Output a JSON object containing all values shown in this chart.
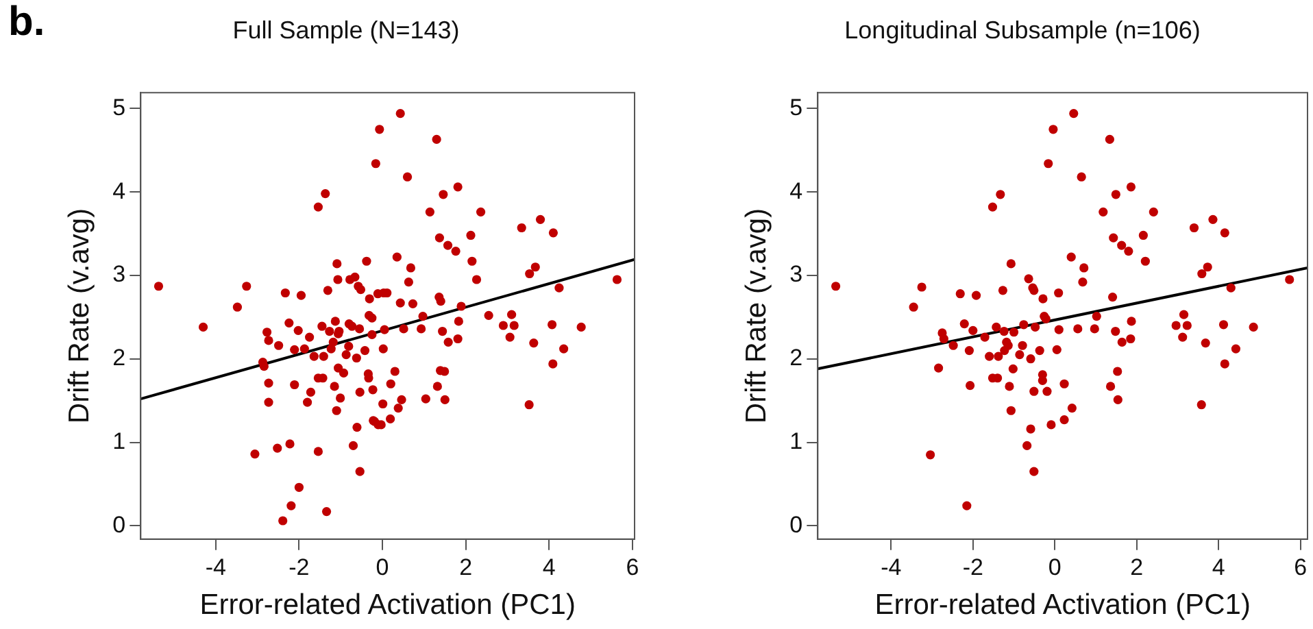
{
  "chart_data": [
    {
      "type": "scatter",
      "title": "Full Sample (N=143)",
      "xlabel": "Error-related Activation (PC1)",
      "ylabel": "Drift Rate (v.avg)",
      "annotations": [
        "b."
      ],
      "xlim": [
        -5.8,
        6.05
      ],
      "ylim": [
        -0.16,
        5.19
      ],
      "xticks": [
        -4,
        -2,
        0,
        2,
        4,
        6
      ],
      "yticks": [
        0,
        1,
        2,
        3,
        4,
        5
      ],
      "grid": false,
      "legend": false,
      "series": [
        {
          "type": "scatter",
          "marker": "circle",
          "color": "#c00000",
          "x": [
            -5.37,
            -4.3,
            -3.48,
            -3.26,
            -3.06,
            -2.87,
            -2.84,
            -2.77,
            -2.73,
            -2.73,
            -2.73,
            -2.52,
            -2.49,
            -2.39,
            -2.33,
            -2.24,
            -2.22,
            -2.19,
            -2.11,
            -2.11,
            -2.02,
            -2.0,
            -1.95,
            -1.87,
            -1.8,
            -1.75,
            -1.72,
            -1.64,
            -1.54,
            -1.54,
            -1.54,
            -1.45,
            -1.43,
            -1.41,
            -1.37,
            -1.34,
            -1.31,
            -1.27,
            -1.23,
            -1.18,
            -1.15,
            -1.13,
            -1.1,
            -1.09,
            -1.07,
            -1.06,
            -1.04,
            -1.06,
            -1.01,
            -0.93,
            -0.87,
            -0.81,
            -0.8,
            -0.78,
            -0.73,
            -0.7,
            -0.66,
            -0.62,
            -0.61,
            -0.58,
            -0.55,
            -0.54,
            -0.52,
            -0.54,
            -0.42,
            -0.38,
            -0.34,
            -0.33,
            -0.32,
            -0.31,
            -0.25,
            -0.25,
            -0.23,
            -0.22,
            -0.19,
            -0.16,
            -0.11,
            -0.1,
            -0.07,
            -0.03,
            0.02,
            0.01,
            0.03,
            0.05,
            0.11,
            0.19,
            0.2,
            0.3,
            0.35,
            0.38,
            0.43,
            0.43,
            0.46,
            0.51,
            0.6,
            0.63,
            0.68,
            0.73,
            0.93,
            0.97,
            1.04,
            1.14,
            1.3,
            1.32,
            1.36,
            1.37,
            1.39,
            1.4,
            1.44,
            1.46,
            1.49,
            1.5,
            1.57,
            1.58,
            1.76,
            1.81,
            1.81,
            1.83,
            1.89,
            2.12,
            2.15,
            2.26,
            2.36,
            2.55,
            2.9,
            3.06,
            3.1,
            3.16,
            3.34,
            3.52,
            3.53,
            3.63,
            3.67,
            3.79,
            4.07,
            4.1,
            4.09,
            4.24,
            4.35,
            4.77,
            5.63
          ],
          "values": [
            2.87,
            2.38,
            2.62,
            2.87,
            0.86,
            1.96,
            1.91,
            2.32,
            2.22,
            1.71,
            1.48,
            0.93,
            2.16,
            0.06,
            2.79,
            2.43,
            0.98,
            0.24,
            2.11,
            1.69,
            2.34,
            0.46,
            2.76,
            2.12,
            1.48,
            2.26,
            1.6,
            2.03,
            3.82,
            1.77,
            0.89,
            2.39,
            1.77,
            2.03,
            3.98,
            0.17,
            2.82,
            2.33,
            2.12,
            2.2,
            1.67,
            2.45,
            1.38,
            3.14,
            2.95,
            2.3,
            2.33,
            1.89,
            1.53,
            1.83,
            2.05,
            2.15,
            2.42,
            2.95,
            2.39,
            0.96,
            2.98,
            2.01,
            1.18,
            2.87,
            2.36,
            1.6,
            2.83,
            0.65,
            2.1,
            3.17,
            1.82,
            1.77,
            2.52,
            2.72,
            2.49,
            2.29,
            1.63,
            1.26,
            1.25,
            4.34,
            2.78,
            1.21,
            4.75,
            1.21,
            2.12,
            1.46,
            2.79,
            2.35,
            2.79,
            1.28,
            1.7,
            1.85,
            3.22,
            1.41,
            4.94,
            2.67,
            1.51,
            2.36,
            4.18,
            2.92,
            3.09,
            2.66,
            2.36,
            2.51,
            1.52,
            3.76,
            4.63,
            1.67,
            2.74,
            3.45,
            1.86,
            2.69,
            2.33,
            3.97,
            1.85,
            1.51,
            3.36,
            2.2,
            3.29,
            2.24,
            4.06,
            2.45,
            2.63,
            3.48,
            3.17,
            2.95,
            3.76,
            2.52,
            2.4,
            2.26,
            2.53,
            2.4,
            3.57,
            1.45,
            3.02,
            2.19,
            3.1,
            3.67,
            2.41,
            3.51,
            1.94,
            2.85,
            2.12,
            2.38,
            2.95
          ]
        },
        {
          "type": "line",
          "color": "#000000",
          "x": [
            -5.8,
            6.05
          ],
          "values": [
            1.52,
            3.19
          ]
        }
      ]
    },
    {
      "type": "scatter",
      "title": "Longitudinal Subsample (n=106)",
      "xlabel": "Error-related Activation (PC1)",
      "ylabel": "Drift Rate (v.avg)",
      "xlim": [
        -5.79,
        6.17
      ],
      "ylim": [
        -0.16,
        5.19
      ],
      "xticks": [
        -4,
        -2,
        0,
        2,
        4,
        6
      ],
      "yticks": [
        0,
        1,
        2,
        3,
        4,
        5
      ],
      "grid": false,
      "legend": false,
      "series": [
        {
          "type": "scatter",
          "marker": "circle",
          "color": "#c00000",
          "x": [
            -5.35,
            -3.45,
            -3.25,
            -3.04,
            -2.84,
            -2.75,
            -2.71,
            -2.48,
            -2.31,
            -2.21,
            -2.15,
            -2.09,
            -2.07,
            -2.0,
            -1.92,
            -1.71,
            -1.6,
            -1.52,
            -1.52,
            -1.43,
            -1.4,
            -1.38,
            -1.33,
            -1.27,
            -1.24,
            -1.23,
            -1.18,
            -1.14,
            -1.11,
            -1.07,
            -1.07,
            -1.02,
            -1.0,
            -0.86,
            -0.79,
            -0.76,
            -0.68,
            -0.64,
            -0.59,
            -0.59,
            -0.54,
            -0.51,
            -0.51,
            -0.51,
            -0.48,
            -0.37,
            -0.3,
            -0.3,
            -0.29,
            -0.26,
            -0.22,
            -0.19,
            -0.16,
            -0.09,
            -0.04,
            0.05,
            0.09,
            0.1,
            0.23,
            0.23,
            0.4,
            0.42,
            0.46,
            0.56,
            0.65,
            0.68,
            0.71,
            0.97,
            1.02,
            1.18,
            1.34,
            1.36,
            1.41,
            1.43,
            1.48,
            1.49,
            1.53,
            1.54,
            1.63,
            1.64,
            1.8,
            1.85,
            1.86,
            1.87,
            2.16,
            2.21,
            2.41,
            2.96,
            3.12,
            3.15,
            3.23,
            3.4,
            3.58,
            3.59,
            3.68,
            3.73,
            3.86,
            4.12,
            4.15,
            4.15,
            4.3,
            4.42,
            4.85,
            5.73
          ],
          "values": [
            2.87,
            2.62,
            2.86,
            0.85,
            1.89,
            2.31,
            2.24,
            2.16,
            2.78,
            2.42,
            0.24,
            2.1,
            1.68,
            2.34,
            2.76,
            2.26,
            2.03,
            3.82,
            1.77,
            2.38,
            1.77,
            2.03,
            3.97,
            2.82,
            2.33,
            2.1,
            2.2,
            2.16,
            1.67,
            3.14,
            1.38,
            1.88,
            2.32,
            2.05,
            2.16,
            2.41,
            0.96,
            2.96,
            2.0,
            1.16,
            2.85,
            2.82,
            1.61,
            0.65,
            2.38,
            2.1,
            1.81,
            1.74,
            2.72,
            2.51,
            2.48,
            1.61,
            4.34,
            1.21,
            4.75,
            2.11,
            2.79,
            2.35,
            1.7,
            1.27,
            3.22,
            1.41,
            4.94,
            2.36,
            4.18,
            2.92,
            3.09,
            2.36,
            2.51,
            3.76,
            4.63,
            1.67,
            2.74,
            3.45,
            2.33,
            3.97,
            1.85,
            1.51,
            3.36,
            2.2,
            3.29,
            2.24,
            4.06,
            2.45,
            3.48,
            3.17,
            3.76,
            2.4,
            2.26,
            2.53,
            2.4,
            3.57,
            1.45,
            3.02,
            2.19,
            3.1,
            3.67,
            2.41,
            3.51,
            1.94,
            2.85,
            2.12,
            2.38,
            2.95
          ]
        },
        {
          "type": "line",
          "color": "#000000",
          "x": [
            -5.79,
            6.17
          ],
          "values": [
            1.88,
            3.09
          ]
        }
      ]
    }
  ]
}
